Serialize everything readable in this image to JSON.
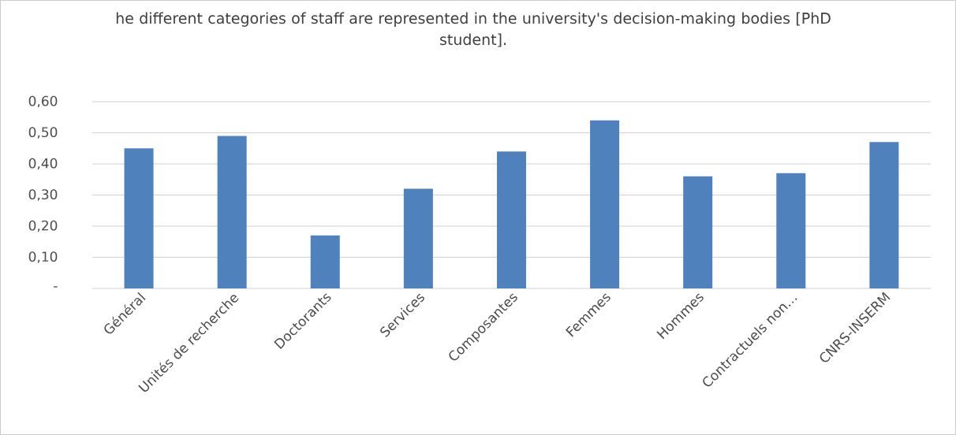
{
  "chart_data": {
    "type": "bar",
    "title": "he different categories of staff are represented in the university's decision-making bodies [PhD student].",
    "categories": [
      "Général",
      "Unités de recherche",
      "Doctorants",
      "Services",
      "Composantes",
      "Femmes",
      "Hommes",
      "Contractuels non…",
      "CNRS-INSERM"
    ],
    "values": [
      0.45,
      0.49,
      0.17,
      0.32,
      0.44,
      0.54,
      0.36,
      0.37,
      0.47
    ],
    "color": "#4f81bd",
    "ylim": [
      0,
      0.6
    ],
    "yticks": [
      {
        "value": 0,
        "label": "-"
      },
      {
        "value": 0.1,
        "label": "0,10"
      },
      {
        "value": 0.2,
        "label": "0,20"
      },
      {
        "value": 0.3,
        "label": "0,30"
      },
      {
        "value": 0.4,
        "label": "0,40"
      },
      {
        "value": 0.5,
        "label": "0,50"
      },
      {
        "value": 0.6,
        "label": "0,60"
      }
    ],
    "grid": "y"
  }
}
